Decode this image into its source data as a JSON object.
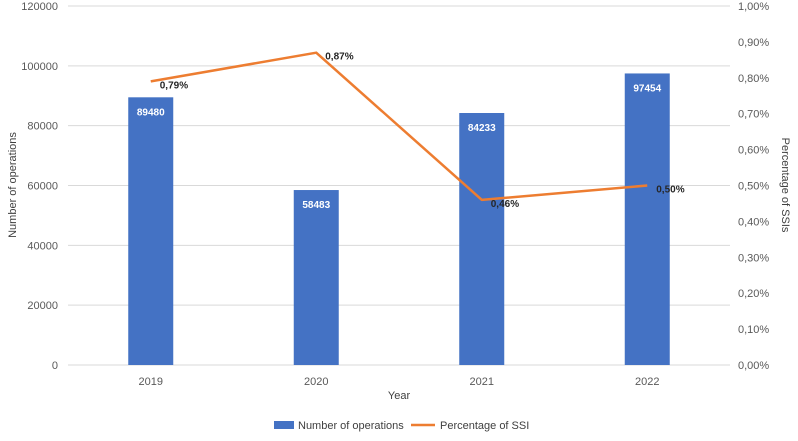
{
  "chart_data": {
    "type": "bar",
    "categories": [
      "2019",
      "2020",
      "2021",
      "2022"
    ],
    "series": [
      {
        "name": "Number of operations",
        "type": "bar",
        "axis": "left",
        "values": [
          89480,
          58483,
          84233,
          97454
        ],
        "labels": [
          "89480",
          "58483",
          "84233",
          "97454"
        ],
        "color": "#4472C4"
      },
      {
        "name": "Percentage of SSI",
        "type": "line",
        "axis": "right",
        "values": [
          0.79,
          0.87,
          0.46,
          0.5
        ],
        "labels": [
          "0,79%",
          "0,87%",
          "0,46%",
          "0,50%"
        ],
        "color": "#ED7D31"
      }
    ],
    "xlabel": "Year",
    "ylabel": "Number of operations",
    "y2label": "Percentage of SSIs",
    "ylim": [
      0,
      120000
    ],
    "y2lim": [
      0,
      1.0
    ],
    "yticks": [
      "0",
      "20000",
      "40000",
      "60000",
      "80000",
      "100000",
      "120000"
    ],
    "y2ticks": [
      "0,00%",
      "0,10%",
      "0,20%",
      "0,30%",
      "0,40%",
      "0,50%",
      "0,60%",
      "0,70%",
      "0,80%",
      "0,90%",
      "1,00%"
    ],
    "grid": true,
    "legend_position": "bottom",
    "gridline_color": "#D9D9D9"
  }
}
